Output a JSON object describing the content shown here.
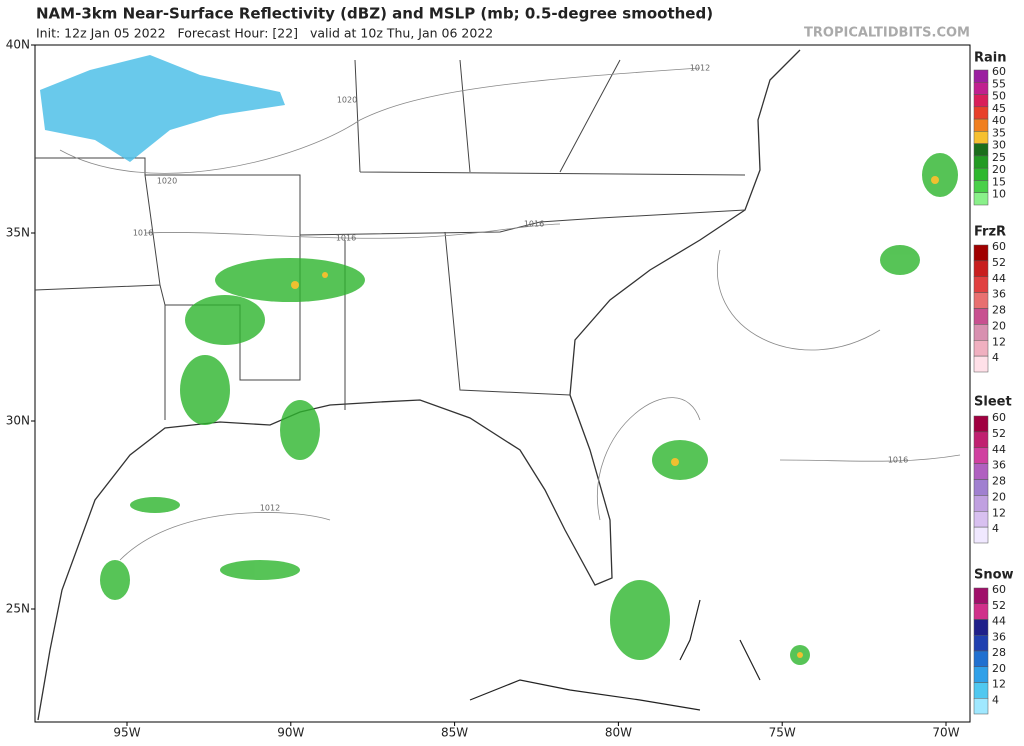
{
  "header": {
    "title": "NAM-3km Near-Surface Reflectivity (dBZ) and MSLP (mb; 0.5-degree smoothed)",
    "subtitle": "Init: 12z Jan 05 2022   Forecast Hour: [22]   valid at 10z Thu, Jan 06 2022",
    "watermark": "TROPICALTIDBITS.COM"
  },
  "map": {
    "lat_labels": [
      "40N",
      "35N",
      "30N",
      "25N"
    ],
    "lon_labels": [
      "95W",
      "90W",
      "85W",
      "80W",
      "75W",
      "70W"
    ],
    "isobar_labels": [
      "1012",
      "1020",
      "1020",
      "1016",
      "1016",
      "1016",
      "1012",
      "1016"
    ]
  },
  "legend": [
    {
      "title": "Rain",
      "ticks": [
        60,
        55,
        50,
        45,
        40,
        35,
        30,
        25,
        20,
        15,
        10
      ]
    },
    {
      "title": "FrzR",
      "ticks": [
        60,
        52,
        44,
        36,
        28,
        20,
        12,
        4
      ]
    },
    {
      "title": "Sleet",
      "ticks": [
        60,
        52,
        44,
        36,
        28,
        20,
        12,
        4
      ]
    },
    {
      "title": "Snow",
      "ticks": [
        60,
        52,
        44,
        36,
        28,
        20,
        12,
        4
      ]
    }
  ]
}
